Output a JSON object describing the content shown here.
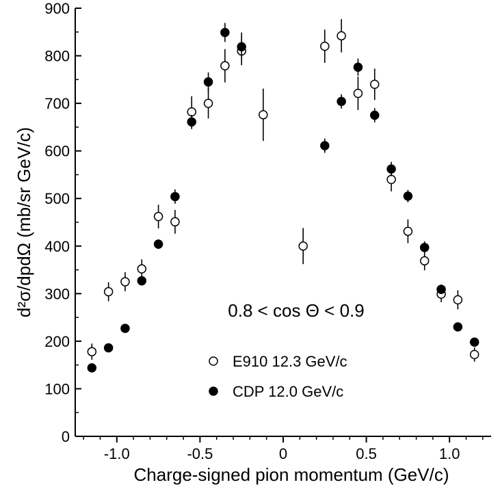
{
  "chart_data": {
    "type": "scatter",
    "xlabel": "Charge-signed pion momentum (GeV/c)",
    "ylabel": "d²σ/dpdΩ (mb/sr GeV/c)",
    "xlim": [
      -1.25,
      1.25
    ],
    "ylim": [
      0,
      900
    ],
    "x_ticks": [
      -1.0,
      -0.5,
      0,
      0.5,
      1.0
    ],
    "x_tick_labels": [
      "-1.0",
      "-0.5",
      "0",
      "0.5",
      "1.0"
    ],
    "y_ticks": [
      0,
      100,
      200,
      300,
      400,
      500,
      600,
      700,
      800,
      900
    ],
    "y_tick_labels": [
      "0",
      "100",
      "200",
      "300",
      "400",
      "500",
      "600",
      "700",
      "800",
      "900"
    ],
    "grid": false,
    "legend_position": "lower-center",
    "annotation": "0.8 < cos Θ < 0.9",
    "series": [
      {
        "name": "E910 12.3 GeV/c",
        "marker": "open-circle",
        "points": [
          {
            "x": -1.15,
            "y": 178,
            "err": 17
          },
          {
            "x": -1.05,
            "y": 304,
            "err": 20
          },
          {
            "x": -0.95,
            "y": 325,
            "err": 20
          },
          {
            "x": -0.85,
            "y": 352,
            "err": 20
          },
          {
            "x": -0.75,
            "y": 462,
            "err": 25
          },
          {
            "x": -0.65,
            "y": 451,
            "err": 25
          },
          {
            "x": -0.55,
            "y": 682,
            "err": 33
          },
          {
            "x": -0.45,
            "y": 700,
            "err": 32
          },
          {
            "x": -0.35,
            "y": 779,
            "err": 35
          },
          {
            "x": -0.25,
            "y": 810,
            "err": 30
          },
          {
            "x": -0.12,
            "y": 676,
            "err": 55
          },
          {
            "x": 0.12,
            "y": 400,
            "err": 38
          },
          {
            "x": 0.25,
            "y": 820,
            "err": 35
          },
          {
            "x": 0.35,
            "y": 842,
            "err": 35
          },
          {
            "x": 0.45,
            "y": 721,
            "err": 35
          },
          {
            "x": 0.55,
            "y": 740,
            "err": 33
          },
          {
            "x": 0.65,
            "y": 540,
            "err": 25
          },
          {
            "x": 0.75,
            "y": 431,
            "err": 25
          },
          {
            "x": 0.85,
            "y": 369,
            "err": 20
          },
          {
            "x": 0.95,
            "y": 299,
            "err": 17
          },
          {
            "x": 1.05,
            "y": 287,
            "err": 20
          },
          {
            "x": 1.15,
            "y": 172,
            "err": 15
          }
        ]
      },
      {
        "name": "CDP  12.0 GeV/c",
        "marker": "filled-circle",
        "points": [
          {
            "x": -1.15,
            "y": 144,
            "err": 5
          },
          {
            "x": -1.05,
            "y": 186,
            "err": 5
          },
          {
            "x": -0.95,
            "y": 227,
            "err": 7
          },
          {
            "x": -0.85,
            "y": 327,
            "err": 10
          },
          {
            "x": -0.75,
            "y": 404,
            "err": 10
          },
          {
            "x": -0.65,
            "y": 504,
            "err": 15
          },
          {
            "x": -0.55,
            "y": 661,
            "err": 15
          },
          {
            "x": -0.45,
            "y": 745,
            "err": 20
          },
          {
            "x": -0.35,
            "y": 849,
            "err": 20
          },
          {
            "x": -0.25,
            "y": 819,
            "err": 30
          },
          {
            "x": 0.25,
            "y": 611,
            "err": 15
          },
          {
            "x": 0.35,
            "y": 704,
            "err": 15
          },
          {
            "x": 0.45,
            "y": 776,
            "err": 18
          },
          {
            "x": 0.55,
            "y": 675,
            "err": 15
          },
          {
            "x": 0.65,
            "y": 562,
            "err": 15
          },
          {
            "x": 0.75,
            "y": 505,
            "err": 13
          },
          {
            "x": 0.85,
            "y": 397,
            "err": 13
          },
          {
            "x": 0.95,
            "y": 309,
            "err": 10
          },
          {
            "x": 1.05,
            "y": 230,
            "err": 5
          },
          {
            "x": 1.15,
            "y": 198,
            "err": 5
          }
        ]
      }
    ]
  }
}
